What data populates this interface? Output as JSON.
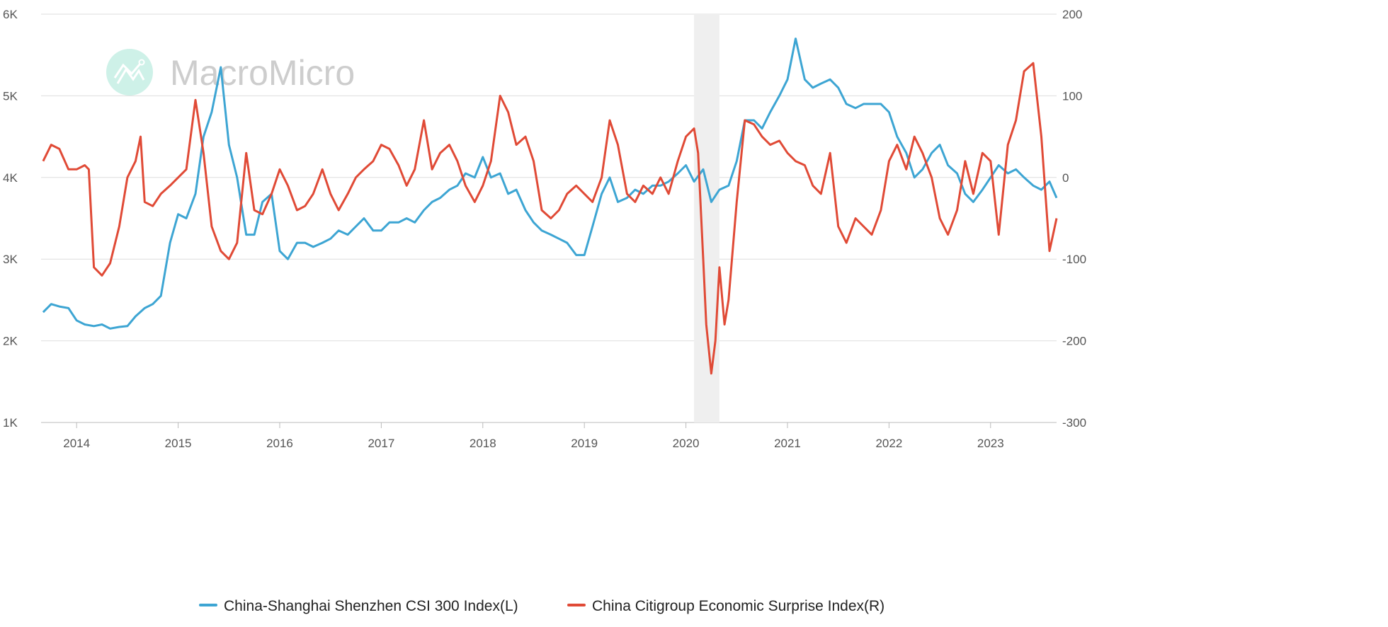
{
  "chart_data": {
    "type": "line",
    "title": "",
    "watermark": "MacroMicro",
    "x_range": [
      2013.65,
      2023.65
    ],
    "x_ticks": [
      "2014",
      "2015",
      "2016",
      "2017",
      "2018",
      "2019",
      "2020",
      "2021",
      "2022",
      "2023"
    ],
    "y_left": {
      "range": [
        1000,
        6000
      ],
      "ticks": [
        "1K",
        "2K",
        "3K",
        "4K",
        "5K",
        "6K"
      ]
    },
    "y_right": {
      "range": [
        -300,
        200
      ],
      "ticks": [
        "-300",
        "-200",
        "-100",
        "0",
        "100",
        "200"
      ]
    },
    "grid": true,
    "legend_position": "bottom",
    "shaded_period": [
      2020.08,
      2020.33
    ],
    "series": [
      {
        "name": "China-Shanghai Shenzhen CSI 300 Index(L)",
        "axis": "left",
        "color": "#3da5d3",
        "points": [
          [
            2013.67,
            2350
          ],
          [
            2013.75,
            2450
          ],
          [
            2013.83,
            2420
          ],
          [
            2013.92,
            2400
          ],
          [
            2014.0,
            2250
          ],
          [
            2014.08,
            2200
          ],
          [
            2014.17,
            2180
          ],
          [
            2014.25,
            2200
          ],
          [
            2014.33,
            2150
          ],
          [
            2014.42,
            2170
          ],
          [
            2014.5,
            2180
          ],
          [
            2014.58,
            2300
          ],
          [
            2014.67,
            2400
          ],
          [
            2014.75,
            2450
          ],
          [
            2014.83,
            2550
          ],
          [
            2014.92,
            3200
          ],
          [
            2015.0,
            3550
          ],
          [
            2015.08,
            3500
          ],
          [
            2015.17,
            3800
          ],
          [
            2015.25,
            4500
          ],
          [
            2015.33,
            4800
          ],
          [
            2015.42,
            5350
          ],
          [
            2015.5,
            4400
          ],
          [
            2015.58,
            4000
          ],
          [
            2015.67,
            3300
          ],
          [
            2015.75,
            3300
          ],
          [
            2015.83,
            3700
          ],
          [
            2015.92,
            3800
          ],
          [
            2016.0,
            3100
          ],
          [
            2016.08,
            3000
          ],
          [
            2016.17,
            3200
          ],
          [
            2016.25,
            3200
          ],
          [
            2016.33,
            3150
          ],
          [
            2016.42,
            3200
          ],
          [
            2016.5,
            3250
          ],
          [
            2016.58,
            3350
          ],
          [
            2016.67,
            3300
          ],
          [
            2016.75,
            3400
          ],
          [
            2016.83,
            3500
          ],
          [
            2016.92,
            3350
          ],
          [
            2017.0,
            3350
          ],
          [
            2017.08,
            3450
          ],
          [
            2017.17,
            3450
          ],
          [
            2017.25,
            3500
          ],
          [
            2017.33,
            3450
          ],
          [
            2017.42,
            3600
          ],
          [
            2017.5,
            3700
          ],
          [
            2017.58,
            3750
          ],
          [
            2017.67,
            3850
          ],
          [
            2017.75,
            3900
          ],
          [
            2017.83,
            4050
          ],
          [
            2017.92,
            4000
          ],
          [
            2018.0,
            4250
          ],
          [
            2018.08,
            4000
          ],
          [
            2018.17,
            4050
          ],
          [
            2018.25,
            3800
          ],
          [
            2018.33,
            3850
          ],
          [
            2018.42,
            3600
          ],
          [
            2018.5,
            3450
          ],
          [
            2018.58,
            3350
          ],
          [
            2018.67,
            3300
          ],
          [
            2018.75,
            3250
          ],
          [
            2018.83,
            3200
          ],
          [
            2018.92,
            3050
          ],
          [
            2019.0,
            3050
          ],
          [
            2019.08,
            3400
          ],
          [
            2019.17,
            3800
          ],
          [
            2019.25,
            4000
          ],
          [
            2019.33,
            3700
          ],
          [
            2019.42,
            3750
          ],
          [
            2019.5,
            3850
          ],
          [
            2019.58,
            3800
          ],
          [
            2019.67,
            3900
          ],
          [
            2019.75,
            3900
          ],
          [
            2019.83,
            3950
          ],
          [
            2019.92,
            4050
          ],
          [
            2020.0,
            4150
          ],
          [
            2020.08,
            3950
          ],
          [
            2020.17,
            4100
          ],
          [
            2020.25,
            3700
          ],
          [
            2020.33,
            3850
          ],
          [
            2020.42,
            3900
          ],
          [
            2020.5,
            4200
          ],
          [
            2020.58,
            4700
          ],
          [
            2020.67,
            4700
          ],
          [
            2020.75,
            4600
          ],
          [
            2020.83,
            4800
          ],
          [
            2020.92,
            5000
          ],
          [
            2021.0,
            5200
          ],
          [
            2021.08,
            5700
          ],
          [
            2021.17,
            5200
          ],
          [
            2021.25,
            5100
          ],
          [
            2021.33,
            5150
          ],
          [
            2021.42,
            5200
          ],
          [
            2021.5,
            5100
          ],
          [
            2021.58,
            4900
          ],
          [
            2021.67,
            4850
          ],
          [
            2021.75,
            4900
          ],
          [
            2021.83,
            4900
          ],
          [
            2021.92,
            4900
          ],
          [
            2022.0,
            4800
          ],
          [
            2022.08,
            4500
          ],
          [
            2022.17,
            4300
          ],
          [
            2022.25,
            4000
          ],
          [
            2022.33,
            4100
          ],
          [
            2022.42,
            4300
          ],
          [
            2022.5,
            4400
          ],
          [
            2022.58,
            4150
          ],
          [
            2022.67,
            4050
          ],
          [
            2022.75,
            3800
          ],
          [
            2022.83,
            3700
          ],
          [
            2022.92,
            3850
          ],
          [
            2023.0,
            4000
          ],
          [
            2023.08,
            4150
          ],
          [
            2023.17,
            4050
          ],
          [
            2023.25,
            4100
          ],
          [
            2023.33,
            4000
          ],
          [
            2023.42,
            3900
          ],
          [
            2023.5,
            3850
          ],
          [
            2023.58,
            3950
          ],
          [
            2023.65,
            3750
          ]
        ]
      },
      {
        "name": "China Citigroup Economic Surprise Index(R)",
        "axis": "right",
        "color": "#e04a36",
        "points": [
          [
            2013.67,
            20
          ],
          [
            2013.75,
            40
          ],
          [
            2013.83,
            35
          ],
          [
            2013.92,
            10
          ],
          [
            2014.0,
            10
          ],
          [
            2014.08,
            15
          ],
          [
            2014.12,
            10
          ],
          [
            2014.17,
            -110
          ],
          [
            2014.25,
            -120
          ],
          [
            2014.33,
            -105
          ],
          [
            2014.42,
            -60
          ],
          [
            2014.5,
            0
          ],
          [
            2014.58,
            20
          ],
          [
            2014.63,
            50
          ],
          [
            2014.67,
            -30
          ],
          [
            2014.75,
            -35
          ],
          [
            2014.83,
            -20
          ],
          [
            2014.92,
            -10
          ],
          [
            2015.0,
            0
          ],
          [
            2015.08,
            10
          ],
          [
            2015.17,
            95
          ],
          [
            2015.25,
            30
          ],
          [
            2015.33,
            -60
          ],
          [
            2015.42,
            -90
          ],
          [
            2015.5,
            -100
          ],
          [
            2015.58,
            -80
          ],
          [
            2015.67,
            30
          ],
          [
            2015.75,
            -40
          ],
          [
            2015.83,
            -45
          ],
          [
            2015.92,
            -20
          ],
          [
            2016.0,
            10
          ],
          [
            2016.08,
            -10
          ],
          [
            2016.17,
            -40
          ],
          [
            2016.25,
            -35
          ],
          [
            2016.33,
            -20
          ],
          [
            2016.42,
            10
          ],
          [
            2016.5,
            -20
          ],
          [
            2016.58,
            -40
          ],
          [
            2016.67,
            -20
          ],
          [
            2016.75,
            0
          ],
          [
            2016.83,
            10
          ],
          [
            2016.92,
            20
          ],
          [
            2017.0,
            40
          ],
          [
            2017.08,
            35
          ],
          [
            2017.17,
            15
          ],
          [
            2017.25,
            -10
          ],
          [
            2017.33,
            10
          ],
          [
            2017.42,
            70
          ],
          [
            2017.5,
            10
          ],
          [
            2017.58,
            30
          ],
          [
            2017.67,
            40
          ],
          [
            2017.75,
            20
          ],
          [
            2017.83,
            -10
          ],
          [
            2017.92,
            -30
          ],
          [
            2018.0,
            -10
          ],
          [
            2018.08,
            20
          ],
          [
            2018.17,
            100
          ],
          [
            2018.25,
            80
          ],
          [
            2018.33,
            40
          ],
          [
            2018.42,
            50
          ],
          [
            2018.5,
            20
          ],
          [
            2018.58,
            -40
          ],
          [
            2018.67,
            -50
          ],
          [
            2018.75,
            -40
          ],
          [
            2018.83,
            -20
          ],
          [
            2018.92,
            -10
          ],
          [
            2019.0,
            -20
          ],
          [
            2019.08,
            -30
          ],
          [
            2019.17,
            0
          ],
          [
            2019.25,
            70
          ],
          [
            2019.33,
            40
          ],
          [
            2019.42,
            -20
          ],
          [
            2019.5,
            -30
          ],
          [
            2019.58,
            -10
          ],
          [
            2019.67,
            -20
          ],
          [
            2019.75,
            0
          ],
          [
            2019.83,
            -20
          ],
          [
            2019.92,
            20
          ],
          [
            2020.0,
            50
          ],
          [
            2020.08,
            60
          ],
          [
            2020.12,
            30
          ],
          [
            2020.17,
            -100
          ],
          [
            2020.2,
            -180
          ],
          [
            2020.25,
            -240
          ],
          [
            2020.29,
            -200
          ],
          [
            2020.33,
            -110
          ],
          [
            2020.38,
            -180
          ],
          [
            2020.42,
            -150
          ],
          [
            2020.5,
            -30
          ],
          [
            2020.58,
            70
          ],
          [
            2020.67,
            65
          ],
          [
            2020.75,
            50
          ],
          [
            2020.83,
            40
          ],
          [
            2020.92,
            45
          ],
          [
            2021.0,
            30
          ],
          [
            2021.08,
            20
          ],
          [
            2021.17,
            15
          ],
          [
            2021.25,
            -10
          ],
          [
            2021.33,
            -20
          ],
          [
            2021.42,
            30
          ],
          [
            2021.5,
            -60
          ],
          [
            2021.58,
            -80
          ],
          [
            2021.67,
            -50
          ],
          [
            2021.75,
            -60
          ],
          [
            2021.83,
            -70
          ],
          [
            2021.92,
            -40
          ],
          [
            2022.0,
            20
          ],
          [
            2022.08,
            40
          ],
          [
            2022.17,
            10
          ],
          [
            2022.25,
            50
          ],
          [
            2022.33,
            30
          ],
          [
            2022.42,
            0
          ],
          [
            2022.5,
            -50
          ],
          [
            2022.58,
            -70
          ],
          [
            2022.67,
            -40
          ],
          [
            2022.75,
            20
          ],
          [
            2022.83,
            -20
          ],
          [
            2022.92,
            30
          ],
          [
            2023.0,
            20
          ],
          [
            2023.08,
            -70
          ],
          [
            2023.17,
            40
          ],
          [
            2023.25,
            70
          ],
          [
            2023.33,
            130
          ],
          [
            2023.42,
            140
          ],
          [
            2023.5,
            50
          ],
          [
            2023.58,
            -90
          ],
          [
            2023.65,
            -50
          ]
        ]
      }
    ]
  }
}
